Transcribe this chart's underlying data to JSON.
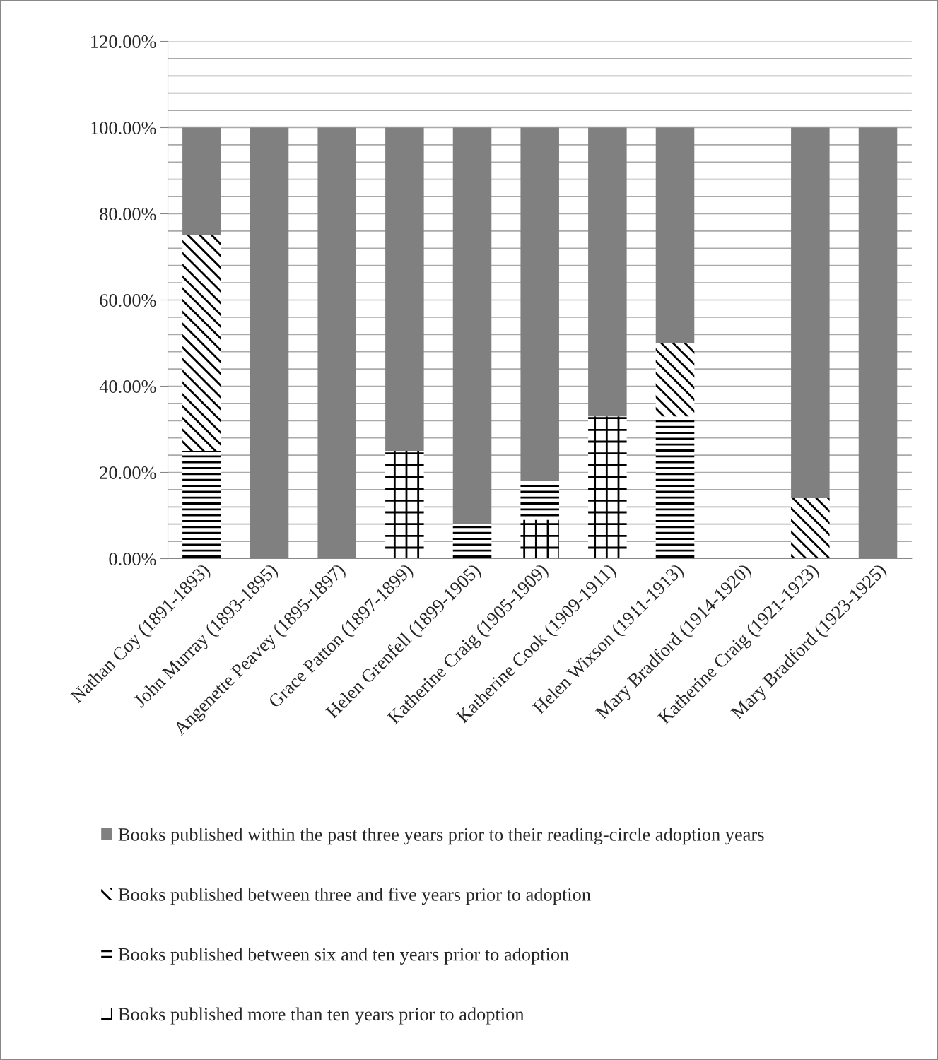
{
  "chart_data": {
    "type": "bar",
    "stacked": true,
    "categories": [
      "Nathan Coy (1891-1893)",
      "John Murray (1893-1895)",
      "Angenette Peavey (1895-1897)",
      "Grace Patton (1897-1899)",
      "Helen Grenfell (1899-1905)",
      "Katherine Craig (1905-1909)",
      "Katherine Cook (1909-1911)",
      "Helen Wixson (1911-1913)",
      "Mary Bradford (1914-1920)",
      "Katherine Craig (1921-1923)",
      "Mary Bradford (1923-1925)"
    ],
    "series": [
      {
        "name": "Books published more than ten years prior to adoption",
        "color": "#000000",
        "values": [
          0,
          0,
          0,
          25,
          0,
          9,
          33,
          0,
          0,
          0,
          0
        ]
      },
      {
        "name": "Books published between six and ten years prior to adoption",
        "color": "#000000",
        "values": [
          25,
          0,
          0,
          0,
          8,
          9,
          0,
          33,
          0,
          0,
          0
        ]
      },
      {
        "name": "Books published between three and five years prior to adoption",
        "color": "#000000",
        "values": [
          50,
          0,
          0,
          0,
          0,
          0,
          0,
          17,
          0,
          14,
          0
        ]
      },
      {
        "name": "Books published within the past three years prior to their reading-circle adoption years",
        "color": "#808080",
        "values": [
          25,
          100,
          100,
          75,
          92,
          82,
          67,
          50,
          0,
          86,
          100
        ]
      }
    ],
    "ylim": [
      0,
      120
    ],
    "yticks": [
      {
        "value": 0,
        "label": "0.00%"
      },
      {
        "value": 4,
        "label": null
      },
      {
        "value": 8,
        "label": null
      },
      {
        "value": 12,
        "label": null
      },
      {
        "value": 16,
        "label": null
      },
      {
        "value": 20,
        "label": "20.00%"
      },
      {
        "value": 24,
        "label": null
      },
      {
        "value": 28,
        "label": null
      },
      {
        "value": 32,
        "label": null
      },
      {
        "value": 36,
        "label": null
      },
      {
        "value": 40,
        "label": "40.00%"
      },
      {
        "value": 44,
        "label": null
      },
      {
        "value": 48,
        "label": null
      },
      {
        "value": 52,
        "label": null
      },
      {
        "value": 56,
        "label": null
      },
      {
        "value": 60,
        "label": "60.00%"
      },
      {
        "value": 64,
        "label": null
      },
      {
        "value": 68,
        "label": null
      },
      {
        "value": 72,
        "label": null
      },
      {
        "value": 76,
        "label": null
      },
      {
        "value": 80,
        "label": "80.00%"
      },
      {
        "value": 84,
        "label": null
      },
      {
        "value": 88,
        "label": null
      },
      {
        "value": 92,
        "label": null
      },
      {
        "value": 96,
        "label": null
      },
      {
        "value": 100,
        "label": "100.00%"
      },
      {
        "value": 104,
        "label": null
      },
      {
        "value": 108,
        "label": null
      },
      {
        "value": 112,
        "label": null
      },
      {
        "value": 116,
        "label": null
      },
      {
        "value": 120,
        "label": "120.00%"
      }
    ],
    "grid": "y",
    "legend": "bottom"
  }
}
